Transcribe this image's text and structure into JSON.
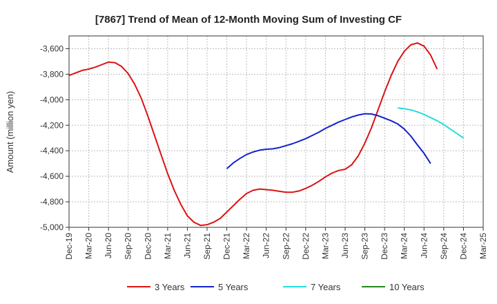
{
  "chart_data": {
    "type": "line",
    "title": "[7867]  Trend of Mean of 12-Month Moving Sum of Investing CF",
    "xlabel": "",
    "ylabel": "Amount (million yen)",
    "ylim": [
      -5000,
      -3500
    ],
    "yticks": [
      -3600,
      -3800,
      -4000,
      -4200,
      -4400,
      -4600,
      -4800,
      -5000
    ],
    "ytick_labels": [
      "-3,600",
      "-3,800",
      "-4,000",
      "-4,200",
      "-4,400",
      "-4,600",
      "-4,800",
      "-5,000"
    ],
    "x_start": "Dec-19",
    "x_months": 63,
    "xtick_labels": [
      "Dec-19",
      "Mar-20",
      "Jun-20",
      "Sep-20",
      "Dec-20",
      "Mar-21",
      "Jun-21",
      "Sep-21",
      "Dec-21",
      "Mar-22",
      "Jun-22",
      "Sep-22",
      "Dec-22",
      "Mar-23",
      "Jun-23",
      "Sep-23",
      "Dec-23",
      "Mar-24",
      "Jun-24",
      "Sep-24",
      "Dec-24",
      "Mar-25"
    ],
    "grid": true,
    "legend_position": "bottom",
    "series": [
      {
        "name": "3 Years",
        "color": "#dd1111",
        "start_month": 0,
        "values": [
          -3810,
          -3790,
          -3770,
          -3760,
          -3745,
          -3725,
          -3705,
          -3710,
          -3740,
          -3795,
          -3880,
          -3990,
          -4130,
          -4280,
          -4430,
          -4580,
          -4710,
          -4820,
          -4910,
          -4960,
          -4985,
          -4980,
          -4960,
          -4930,
          -4880,
          -4830,
          -4780,
          -4735,
          -4710,
          -4700,
          -4705,
          -4710,
          -4718,
          -4725,
          -4725,
          -4715,
          -4695,
          -4670,
          -4640,
          -4605,
          -4575,
          -4555,
          -4545,
          -4510,
          -4440,
          -4340,
          -4220,
          -4080,
          -3940,
          -3810,
          -3700,
          -3620,
          -3570,
          -3555,
          -3580,
          -3650,
          -3760
        ]
      },
      {
        "name": "5 Years",
        "color": "#1122cc",
        "start_month": 24,
        "values": [
          -4540,
          -4495,
          -4460,
          -4430,
          -4410,
          -4395,
          -4388,
          -4385,
          -4375,
          -4360,
          -4345,
          -4325,
          -4305,
          -4280,
          -4255,
          -4225,
          -4200,
          -4175,
          -4155,
          -4135,
          -4120,
          -4110,
          -4112,
          -4125,
          -4145,
          -4165,
          -4190,
          -4230,
          -4285,
          -4355,
          -4420,
          -4500
        ]
      },
      {
        "name": "7 Years",
        "color": "#22dddd",
        "start_month": 50,
        "values": [
          -4065,
          -4070,
          -4080,
          -4095,
          -4115,
          -4140,
          -4165,
          -4195,
          -4230,
          -4265,
          -4300
        ]
      },
      {
        "name": "10 Years",
        "color": "#228822",
        "start_month": 0,
        "values": []
      }
    ]
  }
}
